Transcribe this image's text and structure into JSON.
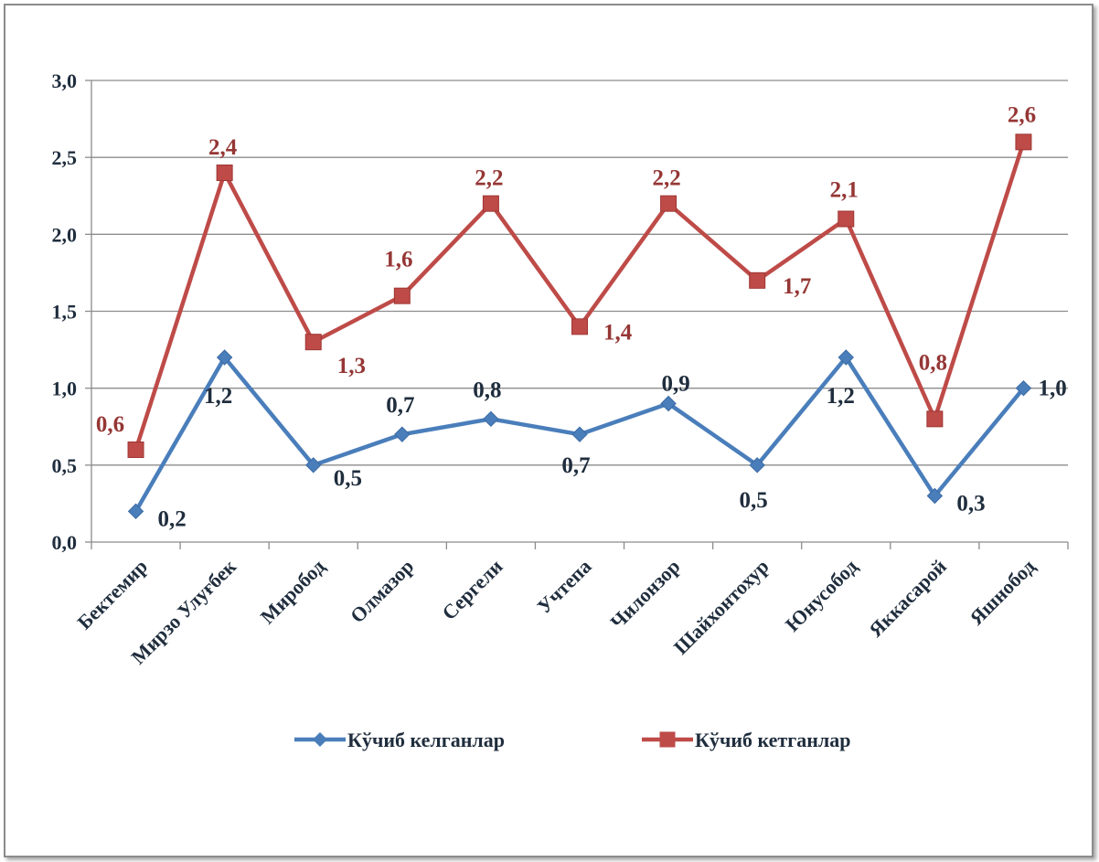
{
  "chart_data": {
    "type": "line",
    "title": "",
    "xlabel": "",
    "ylabel": "",
    "ylim": [
      0,
      3
    ],
    "yticks": [
      "0,0",
      "0,5",
      "1,0",
      "1,5",
      "2,0",
      "2,5",
      "3,0"
    ],
    "grid": true,
    "legend_position": "bottom",
    "categories": [
      "Бектемир",
      "Мирзо Улуғбек",
      "Миробод",
      "Олмазор",
      "Сергели",
      "Учтепа",
      "Чилонзор",
      "Шайхонтохур",
      "Юнусобод",
      "Яккасарой",
      "Яшнобод"
    ],
    "series": [
      {
        "name": "Кўчиб келганлар",
        "color": "#4a7ebb",
        "marker": "diamond",
        "values": [
          0.2,
          1.2,
          0.5,
          0.7,
          0.8,
          0.7,
          0.9,
          0.5,
          1.2,
          0.3,
          1.0
        ],
        "labels": [
          "0,2",
          "1,2",
          "0,5",
          "0,7",
          "0,8",
          "0,7",
          "0,9",
          "0,5",
          "1,2",
          "0,3",
          "1,0"
        ]
      },
      {
        "name": "Кўчиб кетганлар",
        "color": "#be4b48",
        "marker": "square",
        "values": [
          0.6,
          2.4,
          1.3,
          1.6,
          2.2,
          1.4,
          2.2,
          1.7,
          2.1,
          0.8,
          2.6
        ],
        "labels": [
          "0,6",
          "2,4",
          "1,3",
          "1,6",
          "2,2",
          "1,4",
          "2,2",
          "1,7",
          "2,1",
          "0,8",
          "2,6"
        ]
      }
    ]
  }
}
